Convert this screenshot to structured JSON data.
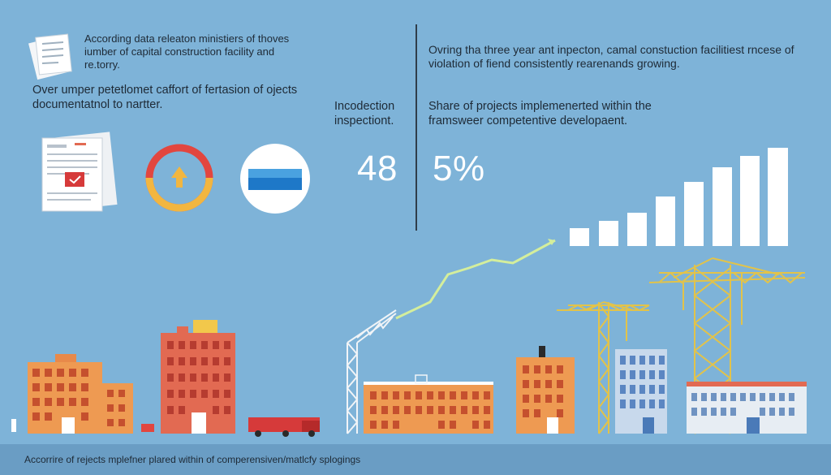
{
  "left_panel": {
    "intro_text": "According data releaton ministiers of thoves iumber of capital construction facility and re.torry.",
    "sub_text": "Over umper petetlomet caffort of fertasion of ojects documentatnol to nartter."
  },
  "right_panel": {
    "intro_text": "Ovring tha three year ant inpecton, camal constuction facilitiest rncese of violation of fiend consistently rearenands growing.",
    "stat1_label": "Incodection inspectiont.",
    "stat1_value": "48",
    "stat2_label": "Share of projects implemenerted within the framswеer competentive developaent.",
    "stat2_value": "5%"
  },
  "footer": {
    "text": "Accorrire of rejects mplefner plared within of comperensiven/matlcfy splogings"
  },
  "icons": [
    "documents-icon",
    "donut-chart-icon",
    "flag-badge-icon"
  ],
  "growth_bars": {
    "values": [
      1,
      1.3,
      1.65,
      2.0,
      2.4,
      2.8,
      3.45,
      4.35
    ]
  },
  "colors": {
    "background": "#7eb3d8",
    "footer": "#6a9dc4",
    "orange": "#ee9a52",
    "red": "#e26a52",
    "crane": "#e2c34a",
    "trend": "#d4ee9c"
  }
}
